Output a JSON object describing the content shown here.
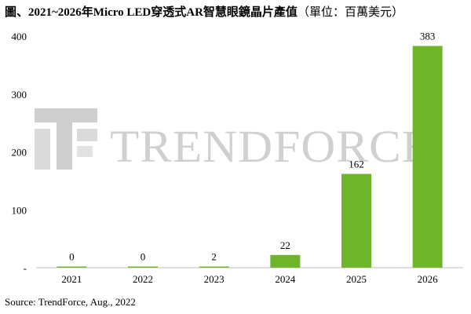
{
  "title": "圖、2021~2026年Micro LED穿透式AR智慧眼鏡晶片產值",
  "unit_label": "（單位：百萬美元）",
  "source": "Source: TrendForce, Aug., 2022",
  "watermark": {
    "text": "TRENDFORCE",
    "logo": "trendforce-logo-icon",
    "color": "#c8c8c8"
  },
  "chart_data": {
    "type": "bar",
    "categories": [
      "2021",
      "2022",
      "2023",
      "2024",
      "2025",
      "2026"
    ],
    "values": [
      0,
      0,
      2,
      22,
      162,
      383
    ],
    "data_labels": [
      "0",
      "0",
      "2",
      "22",
      "162",
      "383"
    ],
    "yticks": [
      0,
      100,
      200,
      300,
      400
    ],
    "ytick_labels": [
      "-",
      "100",
      "200",
      "300",
      "400"
    ],
    "ylim": [
      0,
      400
    ],
    "grid": false,
    "legend": "none",
    "bar_color": "#6fb52c"
  }
}
